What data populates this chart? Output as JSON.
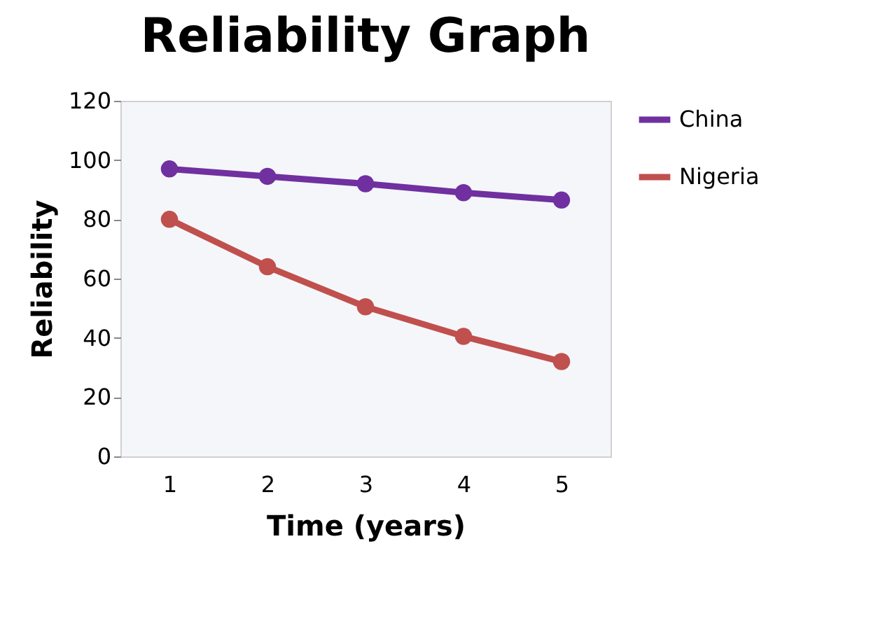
{
  "chart_data": {
    "type": "line",
    "title": "Reliability Graph",
    "xlabel": "Time (years)",
    "ylabel": "Reliability",
    "categories": [
      "1",
      "2",
      "3",
      "4",
      "5"
    ],
    "series": [
      {
        "name": "China",
        "color": "#7030a0",
        "values": [
          97,
          94.5,
          92,
          89,
          86.5
        ]
      },
      {
        "name": "Nigeria",
        "color": "#c0504d",
        "values": [
          80,
          64,
          50.5,
          40.5,
          32
        ]
      }
    ],
    "ylim": [
      0,
      120
    ],
    "yticks": [
      0,
      20,
      40,
      60,
      80,
      100,
      120
    ],
    "grid": false,
    "legend": "right",
    "marker": "circle",
    "line_style": "solid"
  }
}
